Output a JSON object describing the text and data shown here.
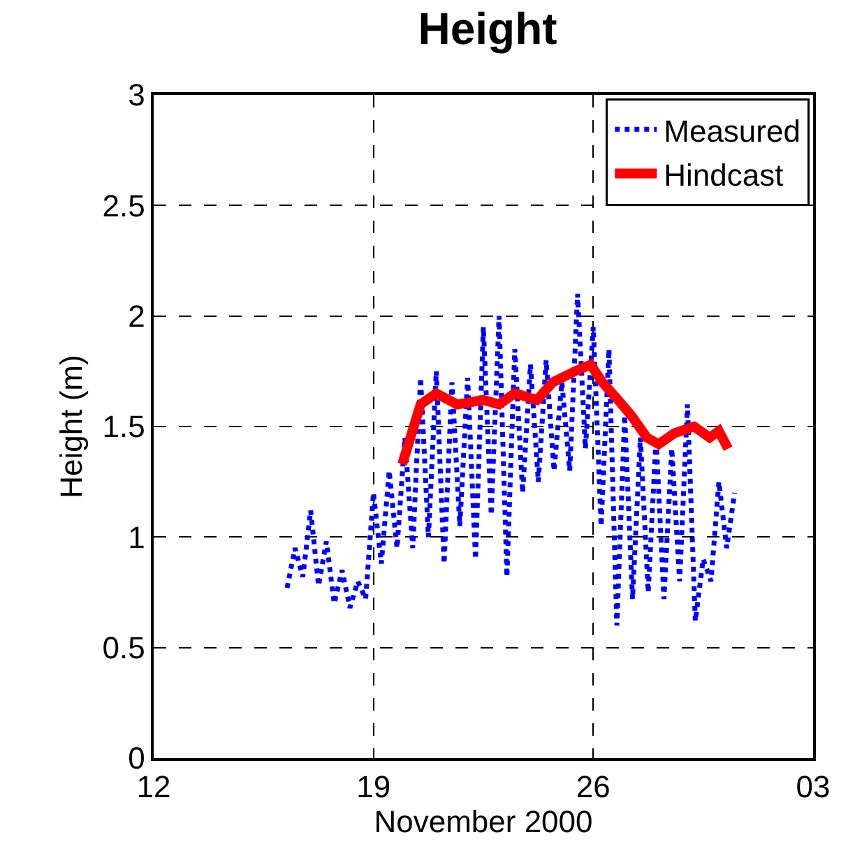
{
  "chart_data": {
    "type": "line",
    "title": "Height",
    "xlabel": "November 2000",
    "ylabel": "Height (m)",
    "xlim": [
      "2000-11-12",
      "2000-12-03"
    ],
    "xticks": [
      {
        "value": "2000-11-12",
        "label": "12"
      },
      {
        "value": "2000-11-19",
        "label": "19"
      },
      {
        "value": "2000-11-26",
        "label": "26"
      },
      {
        "value": "2000-12-03",
        "label": "03"
      }
    ],
    "ylim": [
      0,
      3
    ],
    "yticks": [
      0,
      0.5,
      1,
      1.5,
      2,
      2.5,
      3
    ],
    "grid": true,
    "legend": "top right",
    "series": [
      {
        "name": "Measured",
        "color": "#0000ff",
        "line_style": "dotted",
        "x": [
          "2000-11-16T06:00",
          "2000-11-16T12:00",
          "2000-11-16T18:00",
          "2000-11-17T00:00",
          "2000-11-17T06:00",
          "2000-11-17T12:00",
          "2000-11-17T18:00",
          "2000-11-18T00:00",
          "2000-11-18T06:00",
          "2000-11-18T12:00",
          "2000-11-18T18:00",
          "2000-11-19T00:00",
          "2000-11-19T06:00",
          "2000-11-19T12:00",
          "2000-11-19T18:00",
          "2000-11-20T00:00",
          "2000-11-20T06:00",
          "2000-11-20T12:00",
          "2000-11-20T18:00",
          "2000-11-21T00:00",
          "2000-11-21T06:00",
          "2000-11-21T12:00",
          "2000-11-21T18:00",
          "2000-11-22T00:00",
          "2000-11-22T06:00",
          "2000-11-22T12:00",
          "2000-11-22T18:00",
          "2000-11-23T00:00",
          "2000-11-23T06:00",
          "2000-11-23T12:00",
          "2000-11-23T18:00",
          "2000-11-24T00:00",
          "2000-11-24T06:00",
          "2000-11-24T12:00",
          "2000-11-24T18:00",
          "2000-11-25T00:00",
          "2000-11-25T06:00",
          "2000-11-25T12:00",
          "2000-11-25T18:00",
          "2000-11-26T00:00",
          "2000-11-26T06:00",
          "2000-11-26T12:00",
          "2000-11-26T18:00",
          "2000-11-27T00:00",
          "2000-11-27T06:00",
          "2000-11-27T12:00",
          "2000-11-27T18:00",
          "2000-11-28T00:00",
          "2000-11-28T06:00",
          "2000-11-28T12:00",
          "2000-11-28T18:00",
          "2000-11-29T00:00",
          "2000-11-29T06:00",
          "2000-11-29T12:00",
          "2000-11-29T18:00",
          "2000-11-30T00:00",
          "2000-11-30T06:00",
          "2000-11-30T12:00"
        ],
        "values": [
          0.77,
          0.95,
          0.82,
          1.12,
          0.78,
          0.98,
          0.7,
          0.85,
          0.68,
          0.8,
          0.72,
          1.2,
          0.88,
          1.3,
          0.95,
          1.45,
          0.95,
          1.72,
          1.0,
          1.75,
          0.88,
          1.7,
          1.05,
          1.72,
          0.9,
          1.95,
          1.1,
          2.0,
          0.82,
          1.85,
          1.2,
          1.78,
          1.25,
          1.8,
          1.3,
          1.7,
          1.3,
          2.1,
          1.4,
          1.95,
          1.05,
          1.85,
          0.6,
          1.55,
          0.72,
          1.45,
          0.75,
          1.45,
          0.72,
          1.4,
          0.8,
          1.6,
          0.62,
          0.9,
          0.8,
          1.25,
          0.95,
          1.2
        ]
      },
      {
        "name": "Hindcast",
        "color": "#ff0000",
        "line_style": "solid",
        "x": [
          "2000-11-19T22:00",
          "2000-11-20T12:00",
          "2000-11-21T00:00",
          "2000-11-21T16:00",
          "2000-11-22T12:00",
          "2000-11-23T00:00",
          "2000-11-23T12:00",
          "2000-11-24T05:00",
          "2000-11-24T17:00",
          "2000-11-25T10:00",
          "2000-11-25T22:00",
          "2000-11-26T07:00",
          "2000-11-26T19:00",
          "2000-11-27T05:00",
          "2000-11-27T17:00",
          "2000-11-28T02:00",
          "2000-11-28T14:00",
          "2000-11-29T05:00",
          "2000-11-29T17:00",
          "2000-11-30T00:00",
          "2000-11-30T07:00"
        ],
        "values": [
          1.33,
          1.6,
          1.65,
          1.6,
          1.62,
          1.6,
          1.65,
          1.62,
          1.7,
          1.75,
          1.78,
          1.7,
          1.62,
          1.55,
          1.45,
          1.42,
          1.47,
          1.5,
          1.45,
          1.48,
          1.4
        ]
      }
    ]
  }
}
